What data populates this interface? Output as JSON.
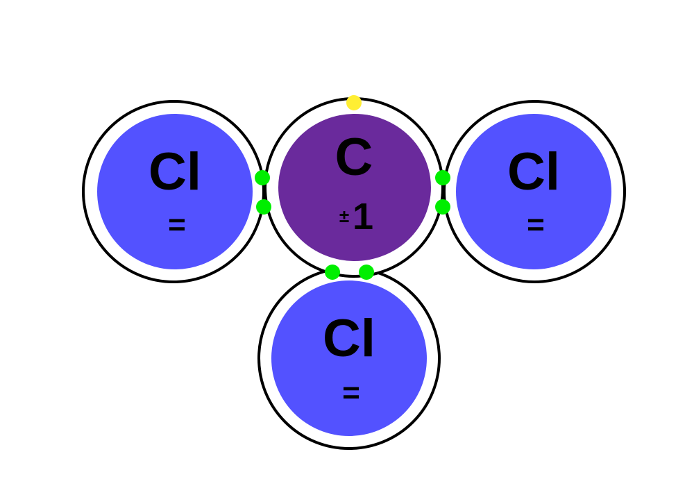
{
  "colors": {
    "chlorine_core": "#5352ff",
    "carbon_core": "#6a2a9c",
    "shell": "#000000",
    "bond_electron": "#00ee00",
    "lone_electron": "#ffee33",
    "background": "#ffffff"
  },
  "atoms": {
    "left": {
      "symbol": "Cl",
      "charge": "="
    },
    "center": {
      "symbol": "C",
      "charge_sign": "±",
      "charge_value": "1"
    },
    "right": {
      "symbol": "Cl",
      "charge": "="
    },
    "bottom": {
      "symbol": "Cl",
      "charge": "="
    }
  }
}
